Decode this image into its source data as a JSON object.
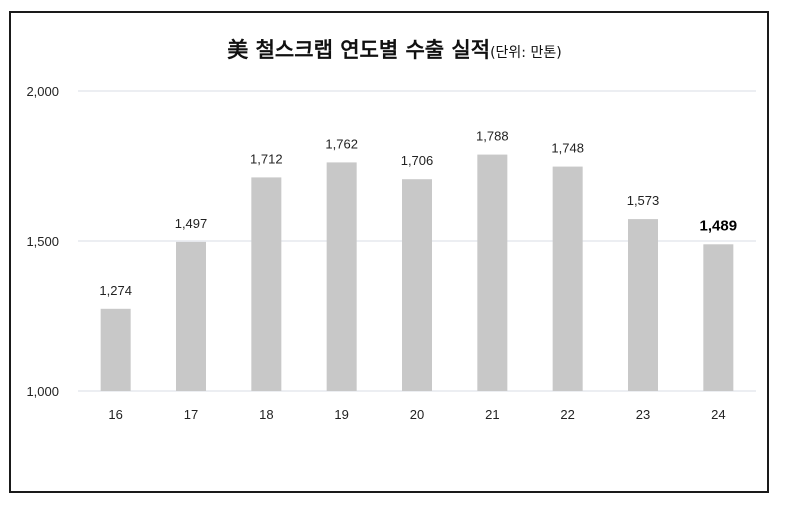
{
  "chart_data": {
    "type": "bar",
    "title": "美 철스크랩 연도별 수출 실적",
    "subtitle": "(단위: 만톤)",
    "categories": [
      "16",
      "17",
      "18",
      "19",
      "20",
      "21",
      "22",
      "23",
      "24"
    ],
    "values": [
      1274,
      1497,
      1712,
      1762,
      1706,
      1788,
      1748,
      1573,
      1489
    ],
    "value_labels": [
      "1,274",
      "1,497",
      "1,712",
      "1,762",
      "1,706",
      "1,788",
      "1,748",
      "1,573",
      "1,489"
    ],
    "highlight_index": 8,
    "ylim": [
      1000,
      2000
    ],
    "yticks": [
      1000,
      1500,
      2000
    ],
    "ytick_labels": [
      "1,000",
      "1,500",
      "2,000"
    ],
    "grid": true,
    "bar_color": "#c8c8c8",
    "grid_color": "#d9dde6"
  }
}
